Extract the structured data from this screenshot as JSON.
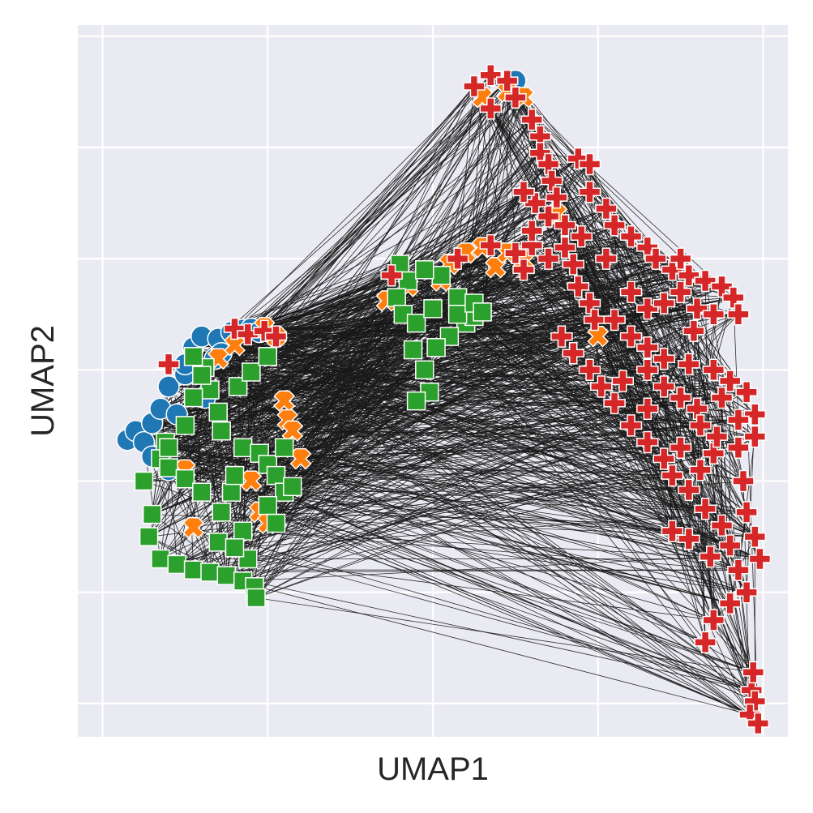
{
  "chart_data": {
    "type": "scatter",
    "title": "",
    "xlabel": "UMAP1",
    "ylabel": "UMAP2",
    "xlim": [
      -0.15,
      4.15
    ],
    "ylim": [
      -0.3,
      6.1
    ],
    "xticks": [
      0,
      1,
      2,
      3,
      4
    ],
    "yticks": [
      0,
      1,
      2,
      3,
      4,
      5,
      6
    ],
    "xtick_labels": [],
    "ytick_labels": [],
    "grid": true,
    "legend": "none",
    "colors": {
      "background": "#eaeaf2",
      "grid": "#ffffff",
      "edges": "#1a1a1a",
      "blue": "#1f77b4",
      "orange": "#ff7f0e",
      "green": "#2ca02c",
      "red": "#d62728"
    },
    "markers": {
      "blue": "circle",
      "orange": "x",
      "green": "square",
      "red": "plus"
    },
    "series": [
      {
        "color": "blue",
        "marker": "circle",
        "points": [
          [
            0.15,
            2.37
          ],
          [
            0.2,
            2.45
          ],
          [
            0.25,
            2.35
          ],
          [
            0.3,
            2.52
          ],
          [
            0.35,
            2.65
          ],
          [
            0.4,
            2.85
          ],
          [
            0.5,
            2.96
          ],
          [
            0.55,
            3.2
          ],
          [
            0.6,
            3.3
          ],
          [
            0.7,
            3.28
          ],
          [
            0.78,
            3.34
          ],
          [
            0.85,
            3.36
          ],
          [
            0.9,
            3.37
          ],
          [
            0.95,
            3.34
          ],
          [
            0.68,
            3.1
          ],
          [
            0.5,
            3.05
          ],
          [
            0.3,
            2.22
          ],
          [
            0.4,
            2.1
          ],
          [
            0.45,
            2.6
          ],
          [
            0.62,
            2.75
          ],
          [
            0.72,
            3.15
          ],
          [
            2.5,
            5.6
          ]
        ]
      },
      {
        "color": "orange",
        "marker": "x",
        "points": [
          [
            0.55,
            1.58
          ],
          [
            0.7,
            3.1
          ],
          [
            0.8,
            3.22
          ],
          [
            0.98,
            3.38
          ],
          [
            1.05,
            3.3
          ],
          [
            1.1,
            2.72
          ],
          [
            1.12,
            2.55
          ],
          [
            1.15,
            2.45
          ],
          [
            1.2,
            2.2
          ],
          [
            0.9,
            2.0
          ],
          [
            0.95,
            1.72
          ],
          [
            1.0,
            1.62
          ],
          [
            0.5,
            2.1
          ],
          [
            2.1,
            3.95
          ],
          [
            2.2,
            4.05
          ],
          [
            2.3,
            4.1
          ],
          [
            2.38,
            3.92
          ],
          [
            2.45,
            4.05
          ],
          [
            2.55,
            3.98
          ],
          [
            2.05,
            3.8
          ],
          [
            2.3,
            5.45
          ],
          [
            2.45,
            5.5
          ],
          [
            2.55,
            5.45
          ],
          [
            3.0,
            3.3
          ],
          [
            2.75,
            4.4
          ],
          [
            1.72,
            3.62
          ],
          [
            1.85,
            3.75
          ]
        ]
      },
      {
        "color": "green",
        "marker": "square",
        "points": [
          [
            0.25,
            2.0
          ],
          [
            0.3,
            1.7
          ],
          [
            0.28,
            1.5
          ],
          [
            0.35,
            1.3
          ],
          [
            0.45,
            1.25
          ],
          [
            0.55,
            1.2
          ],
          [
            0.65,
            1.18
          ],
          [
            0.75,
            1.15
          ],
          [
            0.85,
            1.1
          ],
          [
            0.92,
            1.05
          ],
          [
            0.93,
            0.95
          ],
          [
            0.88,
            1.3
          ],
          [
            0.85,
            1.55
          ],
          [
            0.72,
            1.72
          ],
          [
            0.78,
            1.9
          ],
          [
            0.8,
            2.05
          ],
          [
            0.85,
            2.3
          ],
          [
            0.95,
            2.25
          ],
          [
            1.0,
            2.15
          ],
          [
            1.1,
            2.3
          ],
          [
            1.05,
            2.05
          ],
          [
            1.1,
            1.9
          ],
          [
            1.0,
            1.78
          ],
          [
            1.05,
            1.62
          ],
          [
            1.15,
            1.95
          ],
          [
            0.72,
            2.45
          ],
          [
            0.7,
            2.62
          ],
          [
            0.65,
            2.82
          ],
          [
            0.62,
            3.02
          ],
          [
            0.6,
            2.95
          ],
          [
            0.55,
            3.12
          ],
          [
            0.55,
            2.75
          ],
          [
            0.5,
            2.5
          ],
          [
            0.38,
            2.35
          ],
          [
            0.35,
            2.2
          ],
          [
            0.4,
            2.12
          ],
          [
            0.5,
            2.02
          ],
          [
            0.6,
            1.9
          ],
          [
            0.7,
            1.45
          ],
          [
            0.8,
            1.4
          ],
          [
            0.82,
            2.85
          ],
          [
            0.9,
            2.98
          ],
          [
            1.0,
            3.12
          ],
          [
            0.4,
            2.3
          ],
          [
            1.8,
            3.95
          ],
          [
            1.85,
            3.8
          ],
          [
            1.78,
            3.65
          ],
          [
            1.82,
            3.5
          ],
          [
            1.9,
            3.42
          ],
          [
            1.88,
            3.18
          ],
          [
            1.95,
            3.0
          ],
          [
            1.98,
            2.8
          ],
          [
            1.9,
            2.72
          ],
          [
            2.0,
            3.55
          ],
          [
            2.05,
            3.85
          ],
          [
            2.15,
            3.65
          ],
          [
            2.2,
            3.42
          ],
          [
            2.1,
            3.3
          ],
          [
            2.02,
            3.2
          ],
          [
            2.25,
            3.48
          ],
          [
            1.95,
            3.9
          ],
          [
            2.15,
            3.5
          ],
          [
            2.25,
            3.6
          ],
          [
            2.3,
            3.52
          ]
        ]
      },
      {
        "color": "red",
        "marker": "plus",
        "points": [
          [
            0.4,
            3.05
          ],
          [
            0.8,
            3.37
          ],
          [
            0.88,
            3.32
          ],
          [
            0.98,
            3.35
          ],
          [
            1.05,
            3.3
          ],
          [
            2.15,
            4.0
          ],
          [
            2.35,
            4.12
          ],
          [
            2.5,
            4.05
          ],
          [
            2.6,
            4.12
          ],
          [
            1.75,
            3.85
          ],
          [
            2.55,
            3.9
          ],
          [
            2.7,
            4.0
          ],
          [
            2.25,
            5.55
          ],
          [
            2.35,
            5.65
          ],
          [
            2.45,
            5.6
          ],
          [
            2.5,
            5.45
          ],
          [
            2.35,
            5.35
          ],
          [
            2.6,
            5.25
          ],
          [
            2.65,
            5.1
          ],
          [
            2.65,
            4.95
          ],
          [
            2.7,
            4.85
          ],
          [
            2.72,
            4.7
          ],
          [
            2.75,
            4.55
          ],
          [
            2.7,
            4.38
          ],
          [
            2.8,
            4.3
          ],
          [
            2.6,
            4.25
          ],
          [
            2.62,
            4.5
          ],
          [
            2.55,
            4.6
          ],
          [
            2.88,
            4.9
          ],
          [
            2.95,
            4.85
          ],
          [
            2.95,
            4.6
          ],
          [
            3.05,
            4.45
          ],
          [
            3.1,
            4.3
          ],
          [
            3.2,
            4.2
          ],
          [
            3.3,
            4.1
          ],
          [
            3.35,
            4.0
          ],
          [
            3.45,
            3.9
          ],
          [
            3.55,
            3.85
          ],
          [
            3.65,
            3.8
          ],
          [
            3.75,
            3.75
          ],
          [
            3.82,
            3.65
          ],
          [
            3.85,
            3.5
          ],
          [
            3.5,
            4.0
          ],
          [
            3.6,
            3.55
          ],
          [
            3.7,
            3.5
          ],
          [
            2.8,
            4.1
          ],
          [
            2.85,
            3.95
          ],
          [
            2.88,
            3.75
          ],
          [
            2.95,
            3.6
          ],
          [
            2.98,
            3.45
          ],
          [
            3.1,
            3.45
          ],
          [
            3.2,
            3.3
          ],
          [
            3.3,
            3.2
          ],
          [
            3.4,
            3.1
          ],
          [
            3.55,
            3.05
          ],
          [
            3.7,
            3.0
          ],
          [
            3.8,
            2.9
          ],
          [
            3.9,
            2.8
          ],
          [
            3.95,
            2.6
          ],
          [
            3.95,
            2.4
          ],
          [
            3.85,
            2.3
          ],
          [
            3.7,
            2.25
          ],
          [
            3.62,
            2.1
          ],
          [
            3.55,
            1.92
          ],
          [
            3.65,
            1.75
          ],
          [
            3.75,
            1.6
          ],
          [
            3.8,
            1.42
          ],
          [
            3.68,
            1.32
          ],
          [
            3.55,
            1.48
          ],
          [
            3.45,
            1.55
          ],
          [
            3.85,
            1.2
          ],
          [
            3.9,
            1.0
          ],
          [
            3.8,
            0.9
          ],
          [
            3.7,
            0.75
          ],
          [
            3.65,
            0.55
          ],
          [
            3.95,
            1.5
          ],
          [
            3.98,
            1.3
          ],
          [
            3.9,
            1.72
          ],
          [
            3.88,
            2.0
          ],
          [
            2.78,
            3.3
          ],
          [
            2.85,
            3.15
          ],
          [
            2.95,
            3.0
          ],
          [
            3.02,
            2.85
          ],
          [
            3.1,
            2.7
          ],
          [
            3.2,
            2.5
          ],
          [
            3.3,
            2.35
          ],
          [
            3.4,
            2.2
          ],
          [
            3.45,
            2.05
          ],
          [
            3.3,
            2.65
          ],
          [
            3.15,
            2.9
          ],
          [
            3.3,
            3.0
          ],
          [
            3.4,
            2.85
          ],
          [
            3.5,
            2.75
          ],
          [
            3.6,
            2.65
          ],
          [
            3.62,
            2.5
          ],
          [
            3.72,
            2.4
          ],
          [
            3.75,
            2.75
          ],
          [
            3.85,
            2.55
          ],
          [
            3.5,
            2.3
          ],
          [
            3.58,
            3.35
          ],
          [
            3.2,
            3.7
          ],
          [
            3.3,
            3.55
          ],
          [
            3.4,
            3.6
          ],
          [
            3.5,
            3.7
          ],
          [
            3.05,
            4.0
          ],
          [
            2.9,
            4.2
          ],
          [
            3.93,
            0.12
          ],
          [
            3.95,
            0.02
          ],
          [
            3.92,
            -0.1
          ],
          [
            3.97,
            -0.18
          ],
          [
            3.94,
            0.28
          ]
        ]
      }
    ]
  }
}
